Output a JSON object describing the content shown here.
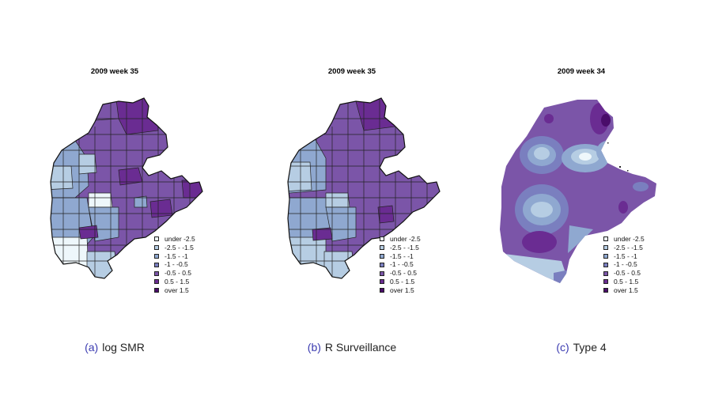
{
  "panels": [
    {
      "title": "2009 week 35",
      "tag": "(a)",
      "caption": "log SMR"
    },
    {
      "title": "2009 week 35",
      "tag": "(b)",
      "caption": "R Surveillance"
    },
    {
      "title": "2009 week 34",
      "tag": "(c)",
      "caption": "Type 4"
    }
  ],
  "legend": [
    {
      "label": "under -2.5",
      "color": "#eef7fb"
    },
    {
      "label": "-2.5 - -1.5",
      "color": "#b6cde3"
    },
    {
      "label": "-1.5 - -1",
      "color": "#8fa8d0"
    },
    {
      "label": "-1 - -0.5",
      "color": "#7a7fbf"
    },
    {
      "label": "-0.5 - 0.5",
      "color": "#7b55a8"
    },
    {
      "label": "0.5 - 1.5",
      "color": "#6a2c92"
    },
    {
      "label": "over 1.5",
      "color": "#4a0d6a"
    }
  ]
}
